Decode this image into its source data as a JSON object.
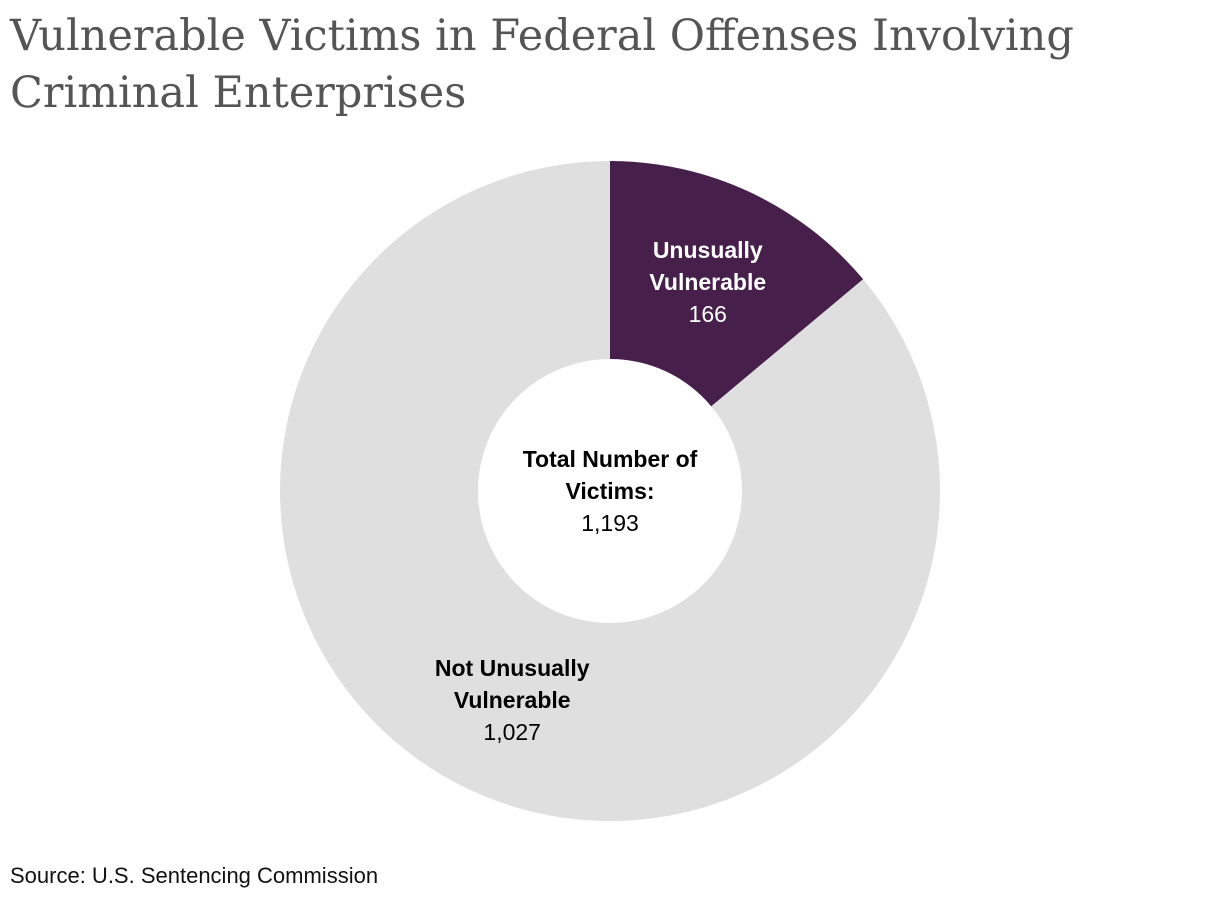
{
  "chart_data": {
    "type": "donut",
    "title": "Vulnerable Victims in Federal Offenses Involving Criminal Enterprises",
    "categories": [
      "Unusually Vulnerable",
      "Not Unusually Vulnerable"
    ],
    "values": [
      166,
      1027
    ],
    "value_labels": [
      "166",
      "1,027"
    ],
    "colors": [
      "#46204a",
      "#e0dfdf"
    ],
    "label_colors": [
      "#ffffff",
      "#000000"
    ],
    "center_title": "Total Number of Victims:",
    "total": {
      "value": 1193,
      "label": "1,193"
    },
    "source": "Source: U.S. Sentencing Commission"
  }
}
